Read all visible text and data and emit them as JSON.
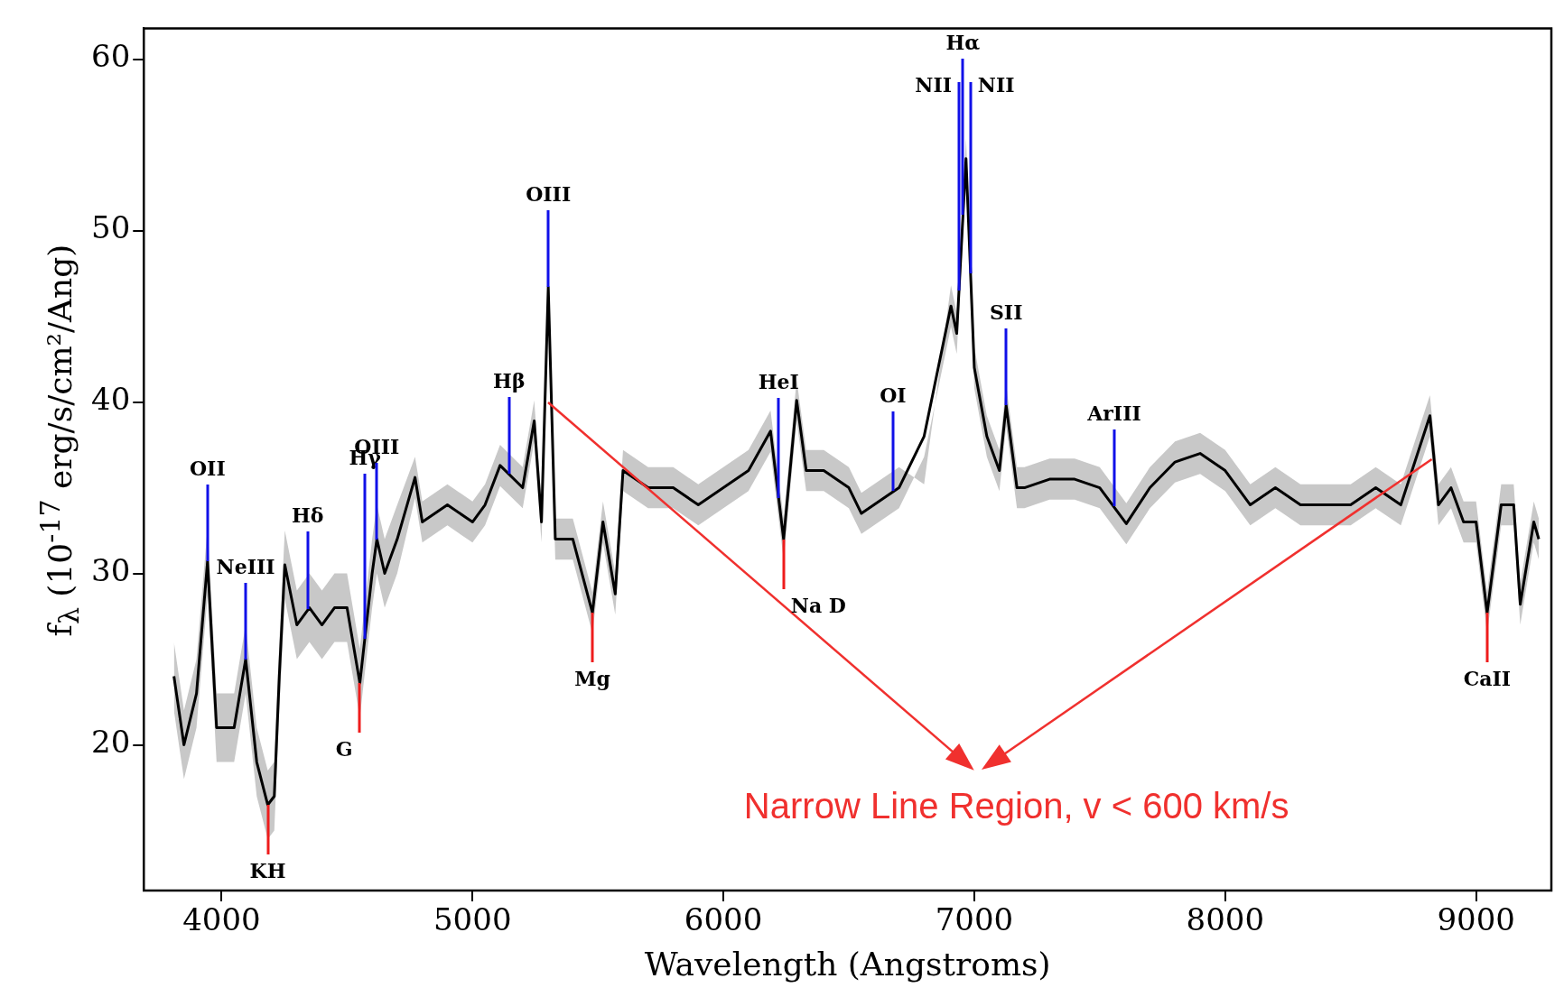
{
  "chart_data": {
    "type": "line",
    "xlabel": "Wavelength (Angstroms)",
    "ylabel": "f$_{λ}$ (10$^{-17}$ erg/s/cm²/Ang)",
    "x": [
      3810,
      3850,
      3900,
      3944,
      3980,
      4050,
      4096,
      4140,
      4184,
      4210,
      4230,
      4252,
      4300,
      4350,
      4400,
      4450,
      4500,
      4551,
      4600,
      4619,
      4650,
      4700,
      4771,
      4800,
      4900,
      5000,
      5050,
      5110,
      5200,
      5246,
      5275,
      5302,
      5330,
      5400,
      5478,
      5520,
      5569,
      5600,
      5700,
      5800,
      5900,
      6000,
      6100,
      6188,
      6240,
      6292,
      6330,
      6400,
      6500,
      6550,
      6600,
      6700,
      6800,
      6907,
      6930,
      6967,
      7000,
      7050,
      7100,
      7127,
      7170,
      7200,
      7300,
      7400,
      7500,
      7606,
      7700,
      7800,
      7900,
      8000,
      8100,
      8200,
      8300,
      8400,
      8500,
      8600,
      8700,
      8816,
      8850,
      8900,
      8950,
      9000,
      9044,
      9100,
      9150,
      9176,
      9230,
      9250
    ],
    "series": [
      {
        "color": "#000000",
        "values": [
          24,
          20,
          23,
          30.7,
          21,
          21,
          25,
          19,
          16.5,
          17,
          24,
          30.5,
          27,
          28,
          27,
          28,
          28,
          23.6,
          30,
          32,
          30,
          32,
          35.6,
          33,
          34,
          33,
          34,
          36.3,
          35,
          38.9,
          33,
          46.7,
          32,
          32,
          27.7,
          33,
          28.8,
          36,
          35,
          35,
          34,
          35,
          36,
          38.3,
          32,
          40.1,
          36,
          36,
          35,
          33.5,
          34,
          35,
          38,
          45.6,
          44,
          54.2,
          42,
          38,
          36,
          39.8,
          35,
          35,
          35.5,
          35.5,
          35,
          32.9,
          35,
          36.5,
          37,
          36,
          34,
          35,
          34,
          34,
          34,
          35,
          34,
          39.2,
          34,
          35,
          33,
          33,
          27.7,
          34,
          34,
          28.2,
          33,
          32
        ],
        "lower": [
          22,
          18,
          21,
          28.7,
          19,
          19,
          23,
          17,
          14.5,
          15,
          22,
          28.5,
          25,
          26,
          25,
          26,
          26,
          21.6,
          28,
          30,
          28,
          30,
          34.4,
          31.8,
          32.8,
          31.8,
          32.8,
          35.1,
          33.8,
          37.7,
          31.8,
          45.5,
          30.8,
          30.8,
          26.5,
          31.8,
          27.6,
          34.8,
          33.8,
          33.8,
          32.8,
          33.8,
          34.8,
          37.1,
          30.8,
          38.9,
          34.8,
          34.8,
          33.8,
          32.3,
          32.8,
          33.8,
          36.8,
          44.4,
          42.8,
          53,
          40.8,
          36.8,
          34.8,
          38.6,
          33.8,
          33.8,
          34.3,
          34.3,
          33.8,
          31.7,
          33.8,
          35.3,
          35.8,
          34.8,
          32.8,
          33.8,
          32.8,
          32.8,
          32.8,
          33.8,
          32.8,
          38,
          32.8,
          33.8,
          31.8,
          31.8,
          26.5,
          32.8,
          32.8,
          27,
          31.8,
          30.8
        ],
        "upper": [
          26,
          22,
          25,
          32.7,
          23,
          23,
          27,
          21,
          18.5,
          19,
          26,
          32.5,
          29,
          30,
          29,
          30,
          30,
          25.6,
          32,
          34,
          32,
          34,
          36.8,
          34.2,
          35.2,
          34.2,
          35.2,
          37.5,
          36.2,
          40.1,
          34.2,
          47.9,
          33.2,
          33.2,
          28.9,
          34.2,
          30,
          37.2,
          36.2,
          36.2,
          35.2,
          36.2,
          37.2,
          39.5,
          33.2,
          41.3,
          37.2,
          37.2,
          36.2,
          34.7,
          35.2,
          36.2,
          35.2,
          46.8,
          45.2,
          55.4,
          43.2,
          39.2,
          37.2,
          41,
          36.2,
          36.2,
          36.7,
          36.7,
          36.2,
          34.1,
          36.2,
          37.7,
          38.2,
          37.2,
          35.2,
          36.2,
          35.2,
          35.2,
          35.2,
          36.2,
          35.2,
          40.4,
          35.2,
          36.2,
          34.2,
          34.2,
          28.9,
          35.2,
          35.2,
          29.4,
          34.2,
          33.2
        ]
      }
    ],
    "xlim": [
      3690,
      9300
    ],
    "xticks": [
      4000,
      5000,
      6000,
      7000,
      8000,
      9000
    ],
    "ylim": [
      11.5,
      61.8
    ],
    "yticks": [
      20,
      30,
      40,
      50,
      60
    ],
    "annotations": [
      {
        "text": "OII",
        "x": 3944,
        "y": 30.7
      },
      {
        "text": "NeIII",
        "x": 4096,
        "y": 25
      },
      {
        "text": "Hδ",
        "x": 4343,
        "y": 27.9
      },
      {
        "text": "Hγ",
        "x": 4571,
        "y": 26.2
      },
      {
        "text": "OIII",
        "x": 4619,
        "y": 32
      },
      {
        "text": "Hβ",
        "x": 5146,
        "y": 35.8
      },
      {
        "text": "OIII",
        "x": 5302,
        "y": 46.7
      },
      {
        "text": "HeI",
        "x": 6220,
        "y": 34.4
      },
      {
        "text": "OI",
        "x": 6676,
        "y": 34.8
      },
      {
        "text": "NII",
        "x": 6939,
        "y": 46.5
      },
      {
        "text": "Hα",
        "x": 6955,
        "y": 50.9
      },
      {
        "text": "NII",
        "x": 6985,
        "y": 47.5
      },
      {
        "text": "SII",
        "x": 7127,
        "y": 39.8
      },
      {
        "text": "ArIII",
        "x": 7558,
        "y": 33.9
      },
      {
        "text": "KH",
        "x": 4184,
        "y": 16.5
      },
      {
        "text": "G",
        "x": 4551,
        "y": 23.6
      },
      {
        "text": "Mg",
        "x": 5478,
        "y": 27.7
      },
      {
        "text": "Na D",
        "x": 6240,
        "y": 32
      },
      {
        "text": "CaII",
        "x": 9044,
        "y": 27.7
      },
      {
        "text": "Narrow Line Region, v < 600 km/s",
        "x": 5302,
        "y": 40
      }
    ]
  }
}
